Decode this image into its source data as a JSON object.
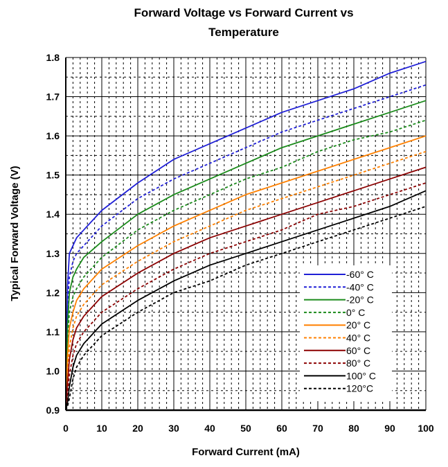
{
  "chart_data": {
    "type": "line",
    "title_line1": "Forward Voltage vs Forward Current vs",
    "title_line2": "Temperature",
    "xlabel": "Forward Current (mA)",
    "ylabel": "Typical Forward Voltage (V)",
    "xlim": [
      0,
      100
    ],
    "ylim": [
      0.9,
      1.8
    ],
    "x_ticks": [
      "0",
      "10",
      "20",
      "30",
      "40",
      "50",
      "60",
      "70",
      "80",
      "90",
      "100"
    ],
    "y_ticks": [
      "0.9",
      "1.0",
      "1.1",
      "1.2",
      "1.3",
      "1.4",
      "1.5",
      "1.6",
      "1.7",
      "1.8"
    ],
    "grid": true,
    "minor_grid": "dotted",
    "legend_position": "bottom-right",
    "x": [
      0,
      0.5,
      1,
      2,
      3,
      5,
      10,
      20,
      30,
      40,
      50,
      60,
      70,
      80,
      90,
      100
    ],
    "series": [
      {
        "name": "-60° C",
        "color": "#1f1fd6",
        "dash": "solid",
        "values": [
          0.9,
          1.22,
          1.3,
          1.32,
          1.34,
          1.36,
          1.41,
          1.48,
          1.54,
          1.58,
          1.62,
          1.66,
          1.69,
          1.72,
          1.76,
          1.79
        ]
      },
      {
        "name": "-40° C",
        "color": "#1f1fd6",
        "dash": "dashed",
        "values": [
          0.9,
          1.17,
          1.24,
          1.28,
          1.3,
          1.32,
          1.37,
          1.44,
          1.49,
          1.53,
          1.57,
          1.61,
          1.64,
          1.67,
          1.7,
          1.73
        ]
      },
      {
        "name": "-20° C",
        "color": "#1a8a1a",
        "dash": "solid",
        "values": [
          0.9,
          1.12,
          1.2,
          1.24,
          1.26,
          1.29,
          1.33,
          1.4,
          1.45,
          1.49,
          1.53,
          1.57,
          1.6,
          1.63,
          1.66,
          1.69
        ]
      },
      {
        "name": "0° C",
        "color": "#1a8a1a",
        "dash": "dashed",
        "values": [
          0.9,
          1.08,
          1.15,
          1.19,
          1.21,
          1.24,
          1.29,
          1.36,
          1.41,
          1.45,
          1.49,
          1.52,
          1.56,
          1.59,
          1.61,
          1.64
        ]
      },
      {
        "name": "20° C",
        "color": "#ff8000",
        "dash": "solid",
        "values": [
          0.9,
          1.04,
          1.11,
          1.15,
          1.18,
          1.21,
          1.26,
          1.32,
          1.37,
          1.41,
          1.45,
          1.48,
          1.51,
          1.54,
          1.57,
          1.6
        ]
      },
      {
        "name": "40° C",
        "color": "#ff8000",
        "dash": "dashed",
        "values": [
          0.9,
          1.0,
          1.06,
          1.11,
          1.14,
          1.17,
          1.22,
          1.28,
          1.33,
          1.37,
          1.41,
          1.44,
          1.47,
          1.5,
          1.53,
          1.56
        ]
      },
      {
        "name": "60° C",
        "color": "#8b0000",
        "dash": "solid",
        "values": [
          0.9,
          0.97,
          1.03,
          1.08,
          1.11,
          1.14,
          1.19,
          1.25,
          1.3,
          1.34,
          1.37,
          1.4,
          1.43,
          1.46,
          1.49,
          1.52
        ]
      },
      {
        "name": "80° C",
        "color": "#8b0000",
        "dash": "dashed",
        "values": [
          0.9,
          0.94,
          0.99,
          1.04,
          1.07,
          1.1,
          1.15,
          1.21,
          1.26,
          1.3,
          1.33,
          1.36,
          1.4,
          1.42,
          1.45,
          1.48
        ]
      },
      {
        "name": "100° C",
        "color": "#000000",
        "dash": "solid",
        "values": [
          0.9,
          0.92,
          0.96,
          1.01,
          1.04,
          1.07,
          1.12,
          1.18,
          1.23,
          1.27,
          1.3,
          1.33,
          1.36,
          1.39,
          1.42,
          1.46
        ]
      },
      {
        "name": "120°C",
        "color": "#000000",
        "dash": "dashed",
        "values": [
          0.9,
          0.91,
          0.93,
          0.98,
          1.01,
          1.04,
          1.09,
          1.15,
          1.2,
          1.23,
          1.27,
          1.3,
          1.33,
          1.36,
          1.39,
          1.42
        ]
      }
    ]
  }
}
